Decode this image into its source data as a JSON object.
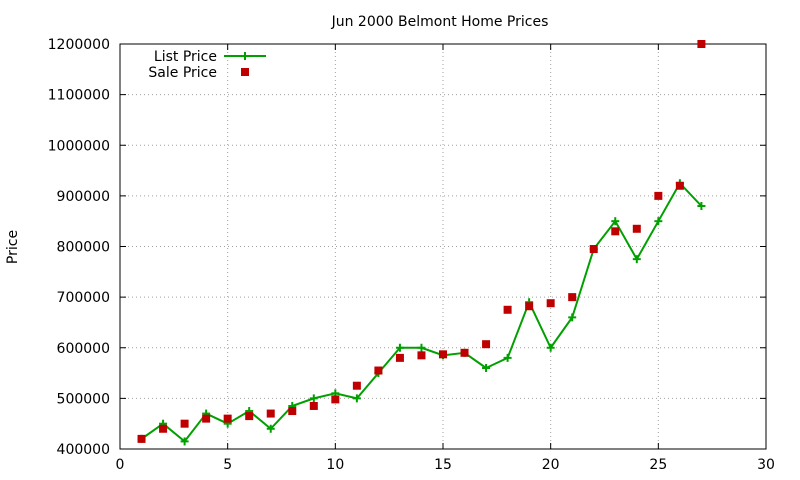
{
  "chart_data": {
    "type": "line",
    "title": "Jun 2000 Belmont Home Prices",
    "xlabel": "",
    "ylabel": "Price",
    "xlim": [
      0,
      30
    ],
    "ylim": [
      400000,
      1200000
    ],
    "x_ticks": [
      0,
      5,
      10,
      15,
      20,
      25,
      30
    ],
    "y_ticks": [
      400000,
      500000,
      600000,
      700000,
      800000,
      900000,
      1000000,
      1100000,
      1200000
    ],
    "x_tick_labels": [
      "0",
      "5",
      "10",
      "15",
      "20",
      "25",
      "30"
    ],
    "y_tick_labels": [
      "400000",
      "500000",
      "600000",
      "700000",
      "800000",
      "900000",
      "1000000",
      "1100000",
      "1200000"
    ],
    "grid": true,
    "legend_position": "top-left",
    "x": [
      1,
      2,
      3,
      4,
      5,
      6,
      7,
      8,
      9,
      10,
      11,
      12,
      13,
      14,
      15,
      16,
      17,
      18,
      19,
      20,
      21,
      22,
      23,
      24,
      25,
      26,
      27
    ],
    "series": [
      {
        "name": "List Price",
        "style": "line-with-plus-markers",
        "color": "#00a000",
        "values": [
          420000,
          450000,
          415000,
          470000,
          450000,
          475000,
          440000,
          485000,
          500000,
          510000,
          500000,
          550000,
          600000,
          600000,
          585000,
          590000,
          560000,
          580000,
          690000,
          600000,
          660000,
          795000,
          850000,
          775000,
          850000,
          925000,
          880000
        ]
      },
      {
        "name": "Sale Price",
        "style": "square-markers",
        "color": "#c00000",
        "values": [
          420000,
          440000,
          450000,
          460000,
          460000,
          465000,
          470000,
          475000,
          485000,
          498000,
          525000,
          555000,
          580000,
          585000,
          587000,
          590000,
          607000,
          675000,
          682000,
          688000,
          700000,
          795000,
          830000,
          835000,
          900000,
          920000,
          1200000
        ]
      }
    ]
  }
}
